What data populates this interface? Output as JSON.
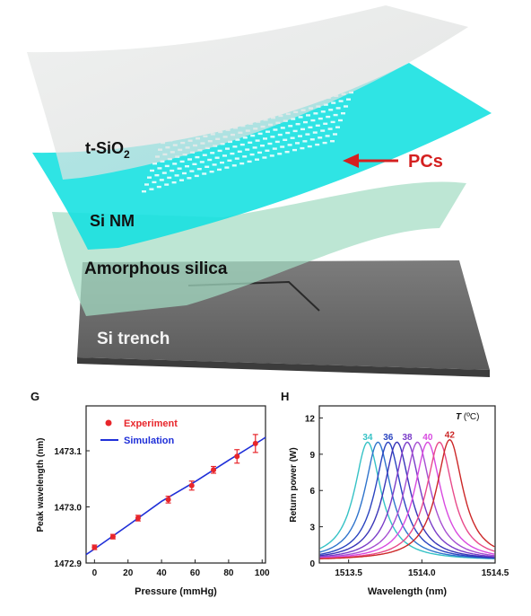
{
  "diagram": {
    "layers": [
      {
        "id": "tsio2",
        "label": "t-SiO",
        "subscript": "2"
      },
      {
        "id": "sinm",
        "label": "Si NM"
      },
      {
        "id": "silica",
        "label": "Amorphous silica"
      },
      {
        "id": "trench",
        "label": "Si trench"
      }
    ],
    "pcs_label": "PCs",
    "colors": {
      "tsio2": "#e2e4e3",
      "sinm": "#12e0e0",
      "silica": "#a3dcc4",
      "trench": "#6e6e6e",
      "pcs_arrow": "#d42020"
    }
  },
  "panel_g": {
    "panel_label": "G",
    "chart_data": {
      "type": "line",
      "xlabel": "Pressure (mmHg)",
      "ylabel": "Peak wavelength (nm)",
      "xlim": [
        -5,
        102
      ],
      "ylim": [
        1472.9,
        1473.18
      ],
      "xticks": [
        0,
        20,
        40,
        60,
        80,
        100
      ],
      "yticks": [
        1472.9,
        1473.0,
        1473.1
      ],
      "ytick_labels": [
        "1472.9",
        "1473.0",
        "1473.1"
      ],
      "legend": {
        "position": "top-left"
      },
      "series": [
        {
          "name": "Experiment",
          "kind": "scatter",
          "color": "#e8262b",
          "x": [
            0,
            11,
            26,
            44,
            58,
            71,
            85,
            96
          ],
          "y": [
            1472.928,
            1472.947,
            1472.98,
            1473.013,
            1473.038,
            1473.066,
            1473.09,
            1473.113
          ],
          "err": [
            0.004,
            0.004,
            0.005,
            0.006,
            0.008,
            0.006,
            0.012,
            0.016
          ]
        },
        {
          "name": "Simulation",
          "kind": "line",
          "color": "#1f2fd8",
          "x": [
            -5,
            0,
            20,
            40,
            60,
            80,
            100,
            102
          ],
          "y": [
            1472.915,
            1472.925,
            1472.967,
            1473.01,
            1473.045,
            1473.083,
            1473.12,
            1473.124
          ]
        }
      ]
    }
  },
  "panel_h": {
    "panel_label": "H",
    "legend_title_italic": "T",
    "legend_title_rest": " (ºC)",
    "chart_data": {
      "type": "line",
      "xlabel": "Wavelength (nm)",
      "ylabel": "Return power (W)",
      "xlim": [
        1513.3,
        1514.5
      ],
      "ylim": [
        0,
        13
      ],
      "xticks": [
        1513.5,
        1514.0,
        1514.5
      ],
      "xtick_labels": [
        "1513.5",
        "1514.0",
        "1514.5"
      ],
      "yticks": [
        0,
        3,
        6,
        9,
        12
      ],
      "series": [
        {
          "name": "34",
          "color": "#36c2c6",
          "peak": 1513.63,
          "width": 0.22,
          "height": 9.8
        },
        {
          "name": "",
          "color": "#2f74cc",
          "peak": 1513.7,
          "width": 0.22,
          "height": 9.8
        },
        {
          "name": "36",
          "color": "#2a44c0",
          "peak": 1513.77,
          "width": 0.22,
          "height": 9.8
        },
        {
          "name": "",
          "color": "#3a35b8",
          "peak": 1513.83,
          "width": 0.22,
          "height": 9.8
        },
        {
          "name": "38",
          "color": "#7a3cc8",
          "peak": 1513.9,
          "width": 0.22,
          "height": 9.8
        },
        {
          "name": "",
          "color": "#a64fd2",
          "peak": 1513.97,
          "width": 0.22,
          "height": 9.8
        },
        {
          "name": "40",
          "color": "#d84ae0",
          "peak": 1514.04,
          "width": 0.22,
          "height": 9.8
        },
        {
          "name": "",
          "color": "#e84a8a",
          "peak": 1514.12,
          "width": 0.22,
          "height": 9.8
        },
        {
          "name": "42",
          "color": "#cc2828",
          "peak": 1514.19,
          "width": 0.22,
          "height": 10.0
        }
      ]
    }
  }
}
